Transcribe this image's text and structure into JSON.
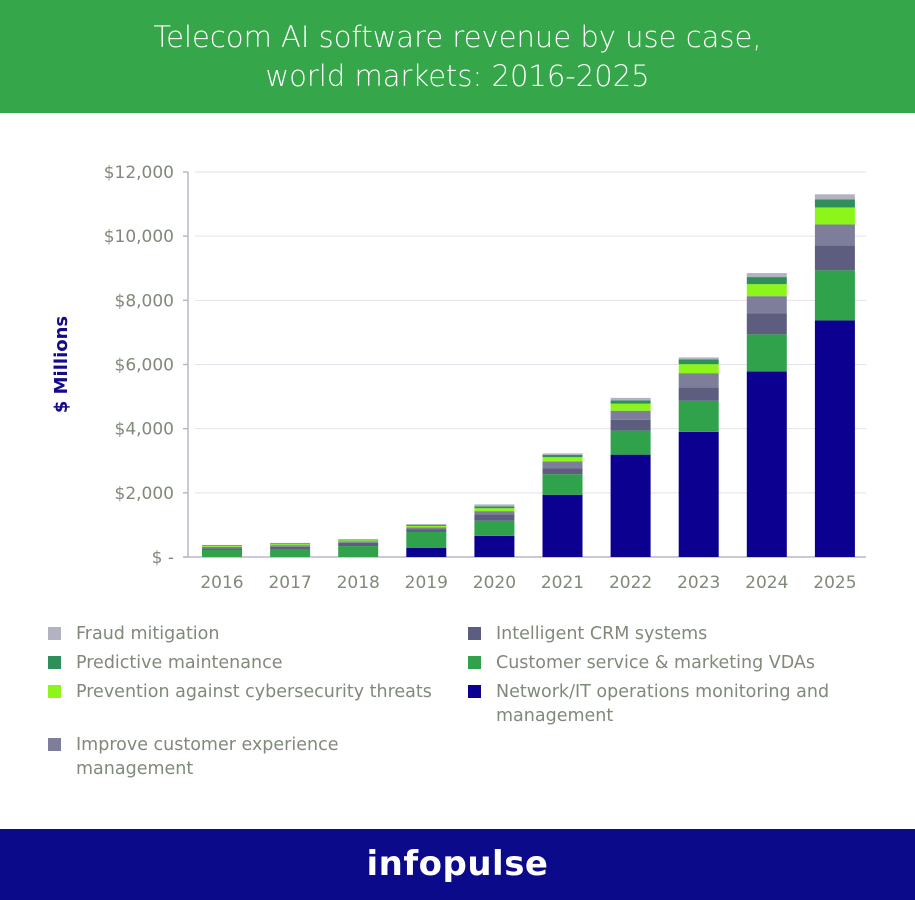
{
  "header": {
    "title_line1": "Telecom AI software revenue by use case,",
    "title_line2": "world markets: 2016-2025"
  },
  "footer": {
    "brand": "infopulse"
  },
  "chart_data": {
    "type": "bar",
    "stacked": true,
    "title": "Telecom AI software revenue by use case, world markets: 2016-2025",
    "xlabel": "",
    "ylabel": "$ Millions",
    "ylim": [
      0,
      12000
    ],
    "yticks": [
      0,
      2000,
      4000,
      6000,
      8000,
      10000,
      12000
    ],
    "ytick_labels": [
      "$ -",
      "$2,000",
      "$4,000",
      "$6,000",
      "$8,000",
      "$10,000",
      "$12,000"
    ],
    "grid": true,
    "legend_position": "bottom",
    "categories": [
      "2016",
      "2017",
      "2018",
      "2019",
      "2020",
      "2021",
      "2022",
      "2023",
      "2024",
      "2025"
    ],
    "series": [
      {
        "name": "Network/IT operations monitoring and management",
        "color": "#0b0090",
        "values": [
          0,
          0,
          0,
          280,
          660,
          1940,
          3190,
          3900,
          5780,
          7375
        ]
      },
      {
        "name": "Customer service & marketing VDAs",
        "color": "#30a24c",
        "values": [
          220,
          250,
          340,
          500,
          470,
          640,
          750,
          970,
          1160,
          1560
        ]
      },
      {
        "name": "Intelligent CRM systems",
        "color": "#5d5d80",
        "values": [
          55,
          70,
          100,
          90,
          200,
          190,
          340,
          420,
          660,
          780
        ]
      },
      {
        "name": "Improve customer experience management",
        "color": "#7e7e9a",
        "values": [
          40,
          50,
          50,
          50,
          100,
          210,
          280,
          440,
          530,
          650
        ]
      },
      {
        "name": "Prevention against cybersecurity threats",
        "color": "#8ef51a",
        "values": [
          25,
          30,
          30,
          50,
          90,
          130,
          220,
          280,
          375,
          530
        ]
      },
      {
        "name": "Predictive maintenance",
        "color": "#2e8f58",
        "values": [
          20,
          20,
          20,
          30,
          60,
          70,
          100,
          150,
          220,
          250
        ]
      },
      {
        "name": "Fraud mitigation",
        "color": "#b2b2c2",
        "values": [
          15,
          20,
          20,
          30,
          60,
          50,
          80,
          60,
          125,
          160
        ]
      }
    ]
  },
  "legend": [
    {
      "label": "Fraud mitigation",
      "color": "#b2b2c2"
    },
    {
      "label": "Predictive maintenance",
      "color": "#2e8f58"
    },
    {
      "label": "Prevention against cybersecurity threats",
      "color": "#8ef51a"
    },
    {
      "label": "Improve customer experience management",
      "color": "#7e7e9a"
    },
    {
      "label": "Intelligent CRM systems",
      "color": "#5d5d80"
    },
    {
      "label": "Customer service & marketing VDAs",
      "color": "#30a24c"
    },
    {
      "label": "Network/IT operations monitoring and management",
      "color": "#0b0090"
    }
  ]
}
